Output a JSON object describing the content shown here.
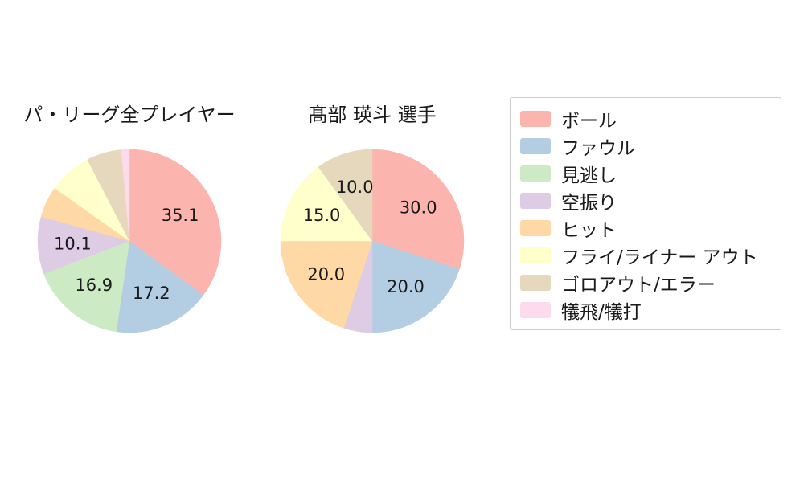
{
  "chart_data": [
    {
      "type": "pie",
      "title": "パ・リーグ全プレイヤー",
      "start_angle_deg": 90,
      "direction": "clockwise",
      "categories": [
        "ボール",
        "ファウル",
        "見逃し",
        "空振り",
        "ヒット",
        "フライ/ライナー アウト",
        "ゴロアウト/エラー",
        "犠飛/犠打"
      ],
      "values": [
        35.1,
        17.2,
        16.9,
        10.1,
        5.5,
        7.6,
        6.2,
        1.4
      ],
      "labels_shown": [
        "35.1",
        "17.2",
        "16.9",
        "10.1",
        "",
        "",
        "",
        ""
      ],
      "colors": [
        "#fbb4ae",
        "#b3cde3",
        "#ccebc5",
        "#decbe4",
        "#fed9a6",
        "#ffffcc",
        "#e5d8bd",
        "#fddaec"
      ]
    },
    {
      "type": "pie",
      "title": "髙部 瑛斗  選手",
      "start_angle_deg": 90,
      "direction": "clockwise",
      "categories": [
        "ボール",
        "ファウル",
        "見逃し",
        "空振り",
        "ヒット",
        "フライ/ライナー アウト",
        "ゴロアウト/エラー",
        "犠飛/犠打"
      ],
      "values": [
        30.0,
        20.0,
        0.0,
        5.0,
        20.0,
        15.0,
        10.0,
        0.0
      ],
      "labels_shown": [
        "30.0",
        "20.0",
        "",
        "",
        "20.0",
        "15.0",
        "10.0",
        ""
      ],
      "colors": [
        "#fbb4ae",
        "#b3cde3",
        "#ccebc5",
        "#decbe4",
        "#fed9a6",
        "#ffffcc",
        "#e5d8bd",
        "#fddaec"
      ]
    }
  ],
  "legend": {
    "items": [
      {
        "label": "ボール",
        "color": "#fbb4ae"
      },
      {
        "label": "ファウル",
        "color": "#b3cde3"
      },
      {
        "label": "見逃し",
        "color": "#ccebc5"
      },
      {
        "label": "空振り",
        "color": "#decbe4"
      },
      {
        "label": "ヒット",
        "color": "#fed9a6"
      },
      {
        "label": "フライ/ライナー アウト",
        "color": "#ffffcc"
      },
      {
        "label": "ゴロアウト/エラー",
        "color": "#e5d8bd"
      },
      {
        "label": "犠飛/犠打",
        "color": "#fddaec"
      }
    ]
  }
}
